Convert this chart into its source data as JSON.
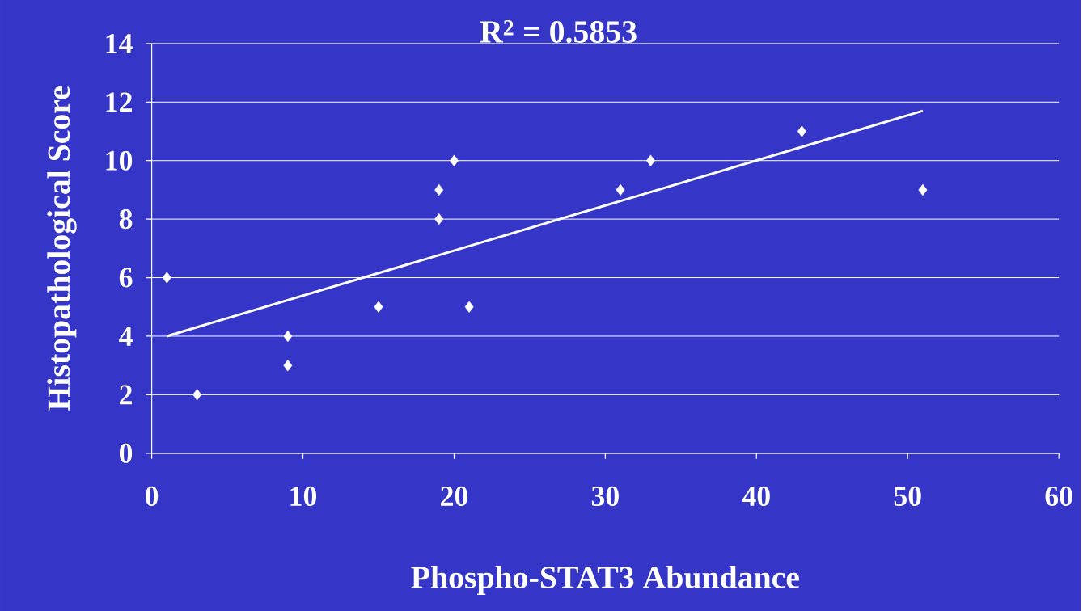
{
  "chart_data": {
    "type": "scatter",
    "xlabel": "Phospho-STAT3 Abundance",
    "ylabel": "Histopathological Score",
    "annotations": [
      "R$^{2}$ = 0.5853"
    ],
    "series": [
      {
        "color": "#ffffff",
        "marker": "diamond",
        "x": [
          1,
          3,
          9,
          9,
          15,
          19,
          19,
          20,
          21,
          31,
          33,
          43,
          51
        ],
        "values": [
          6,
          2,
          4,
          3,
          5,
          9,
          8,
          10,
          5,
          9,
          10,
          11,
          9
        ]
      },
      {
        "type": "line",
        "color": "#ffffff",
        "marker": "none",
        "line_style": "solid",
        "x": [
          1,
          51
        ],
        "values": [
          4.0,
          11.7
        ]
      }
    ],
    "xlim": [
      0,
      60
    ],
    "ylim": [
      0,
      14
    ],
    "xticks": [
      0,
      10,
      20,
      30,
      40,
      50,
      60
    ],
    "yticks": [
      0,
      2,
      4,
      6,
      8,
      10,
      12,
      14
    ],
    "grid": "y"
  }
}
